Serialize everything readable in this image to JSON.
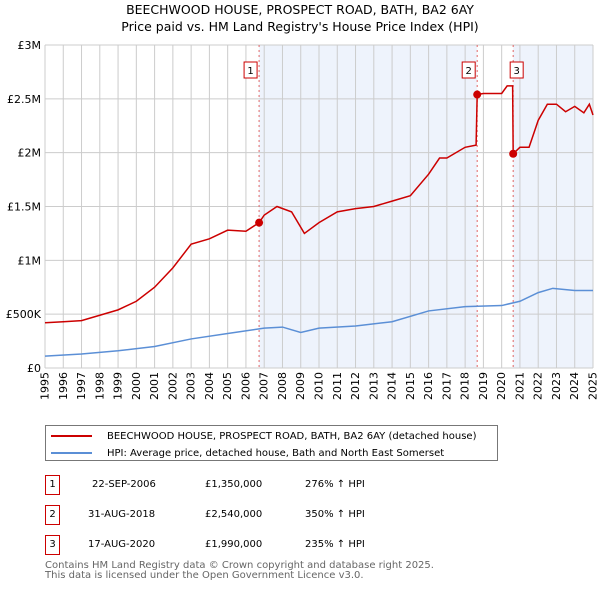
{
  "title": "BEECHWOOD HOUSE, PROSPECT ROAD, BATH, BA2 6AY",
  "subtitle": "Price paid vs. HM Land Registry's House Price Index (HPI)",
  "chart_data": {
    "type": "line",
    "title": "BEECHWOOD HOUSE, PROSPECT ROAD, BATH, BA2 6AY",
    "xlim": [
      1995,
      2025
    ],
    "ylim": [
      0,
      3000000
    ],
    "x_ticks": [
      "1995",
      "1996",
      "1997",
      "1998",
      "1999",
      "2000",
      "2001",
      "2002",
      "2003",
      "2004",
      "2005",
      "2006",
      "2007",
      "2008",
      "2009",
      "2010",
      "2011",
      "2012",
      "2013",
      "2014",
      "2015",
      "2016",
      "2017",
      "2018",
      "2019",
      "2020",
      "2021",
      "2022",
      "2023",
      "2024",
      "2025"
    ],
    "y_ticks": [
      {
        "v": 0,
        "label": "£0"
      },
      {
        "v": 500000,
        "label": "£500K"
      },
      {
        "v": 1000000,
        "label": "£1M"
      },
      {
        "v": 1500000,
        "label": "£1.5M"
      },
      {
        "v": 2000000,
        "label": "£2M"
      },
      {
        "v": 2500000,
        "label": "£2.5M"
      },
      {
        "v": 3000000,
        "label": "£3M"
      }
    ],
    "grid": true,
    "series": [
      {
        "name": "BEECHWOOD HOUSE, PROSPECT ROAD, BATH, BA2 6AY (detached house)",
        "color": "#cc0000",
        "x": [
          1995,
          1996,
          1997,
          1998,
          1999,
          2000,
          2001,
          2002,
          2003,
          2004,
          2005,
          2006,
          2006.72,
          2007,
          2007.7,
          2008.5,
          2009.2,
          2010,
          2011,
          2012,
          2013,
          2014,
          2015,
          2016,
          2016.6,
          2017,
          2018,
          2018.6,
          2018.66,
          2019,
          2020,
          2020.3,
          2020.6,
          2020.63,
          2021,
          2021.5,
          2022,
          2022.5,
          2023,
          2023.5,
          2024,
          2024.5,
          2024.8,
          2025
        ],
        "y": [
          420000,
          430000,
          440000,
          490000,
          540000,
          620000,
          750000,
          930000,
          1150000,
          1200000,
          1280000,
          1270000,
          1350000,
          1420000,
          1500000,
          1450000,
          1250000,
          1350000,
          1450000,
          1480000,
          1500000,
          1550000,
          1600000,
          1800000,
          1950000,
          1950000,
          2050000,
          2070000,
          2540000,
          2550000,
          2550000,
          2620000,
          2620000,
          1990000,
          2050000,
          2050000,
          2300000,
          2450000,
          2450000,
          2380000,
          2430000,
          2370000,
          2450000,
          2350000
        ]
      },
      {
        "name": "HPI: Average price, detached house, Bath and North East Somerset",
        "color": "#5b8fd6",
        "x": [
          1995,
          1997,
          1999,
          2001,
          2003,
          2005,
          2007,
          2008,
          2009,
          2010,
          2012,
          2014,
          2016,
          2018,
          2020,
          2021,
          2022,
          2022.8,
          2024,
          2025
        ],
        "y": [
          110000,
          130000,
          160000,
          200000,
          270000,
          320000,
          370000,
          380000,
          330000,
          370000,
          390000,
          430000,
          530000,
          570000,
          580000,
          620000,
          700000,
          740000,
          720000,
          720000
        ]
      }
    ],
    "sales": [
      {
        "label": "1",
        "x": 2006.72,
        "y": 1350000
      },
      {
        "label": "2",
        "x": 2018.66,
        "y": 2540000
      },
      {
        "label": "3",
        "x": 2020.63,
        "y": 1990000
      }
    ],
    "legend_position": "bottom"
  },
  "legend": [
    "BEECHWOOD HOUSE, PROSPECT ROAD, BATH, BA2 6AY (detached house)",
    "HPI: Average price, detached house, Bath and North East Somerset"
  ],
  "transactions": [
    {
      "n": "1",
      "date": "22-SEP-2006",
      "price": "£1,350,000",
      "hpi": "276% ↑ HPI"
    },
    {
      "n": "2",
      "date": "31-AUG-2018",
      "price": "£2,540,000",
      "hpi": "350% ↑ HPI"
    },
    {
      "n": "3",
      "date": "17-AUG-2020",
      "price": "£1,990,000",
      "hpi": "235% ↑ HPI"
    }
  ],
  "footer": [
    "Contains HM Land Registry data © Crown copyright and database right 2025.",
    "This data is licensed under the Open Government Licence v3.0."
  ]
}
